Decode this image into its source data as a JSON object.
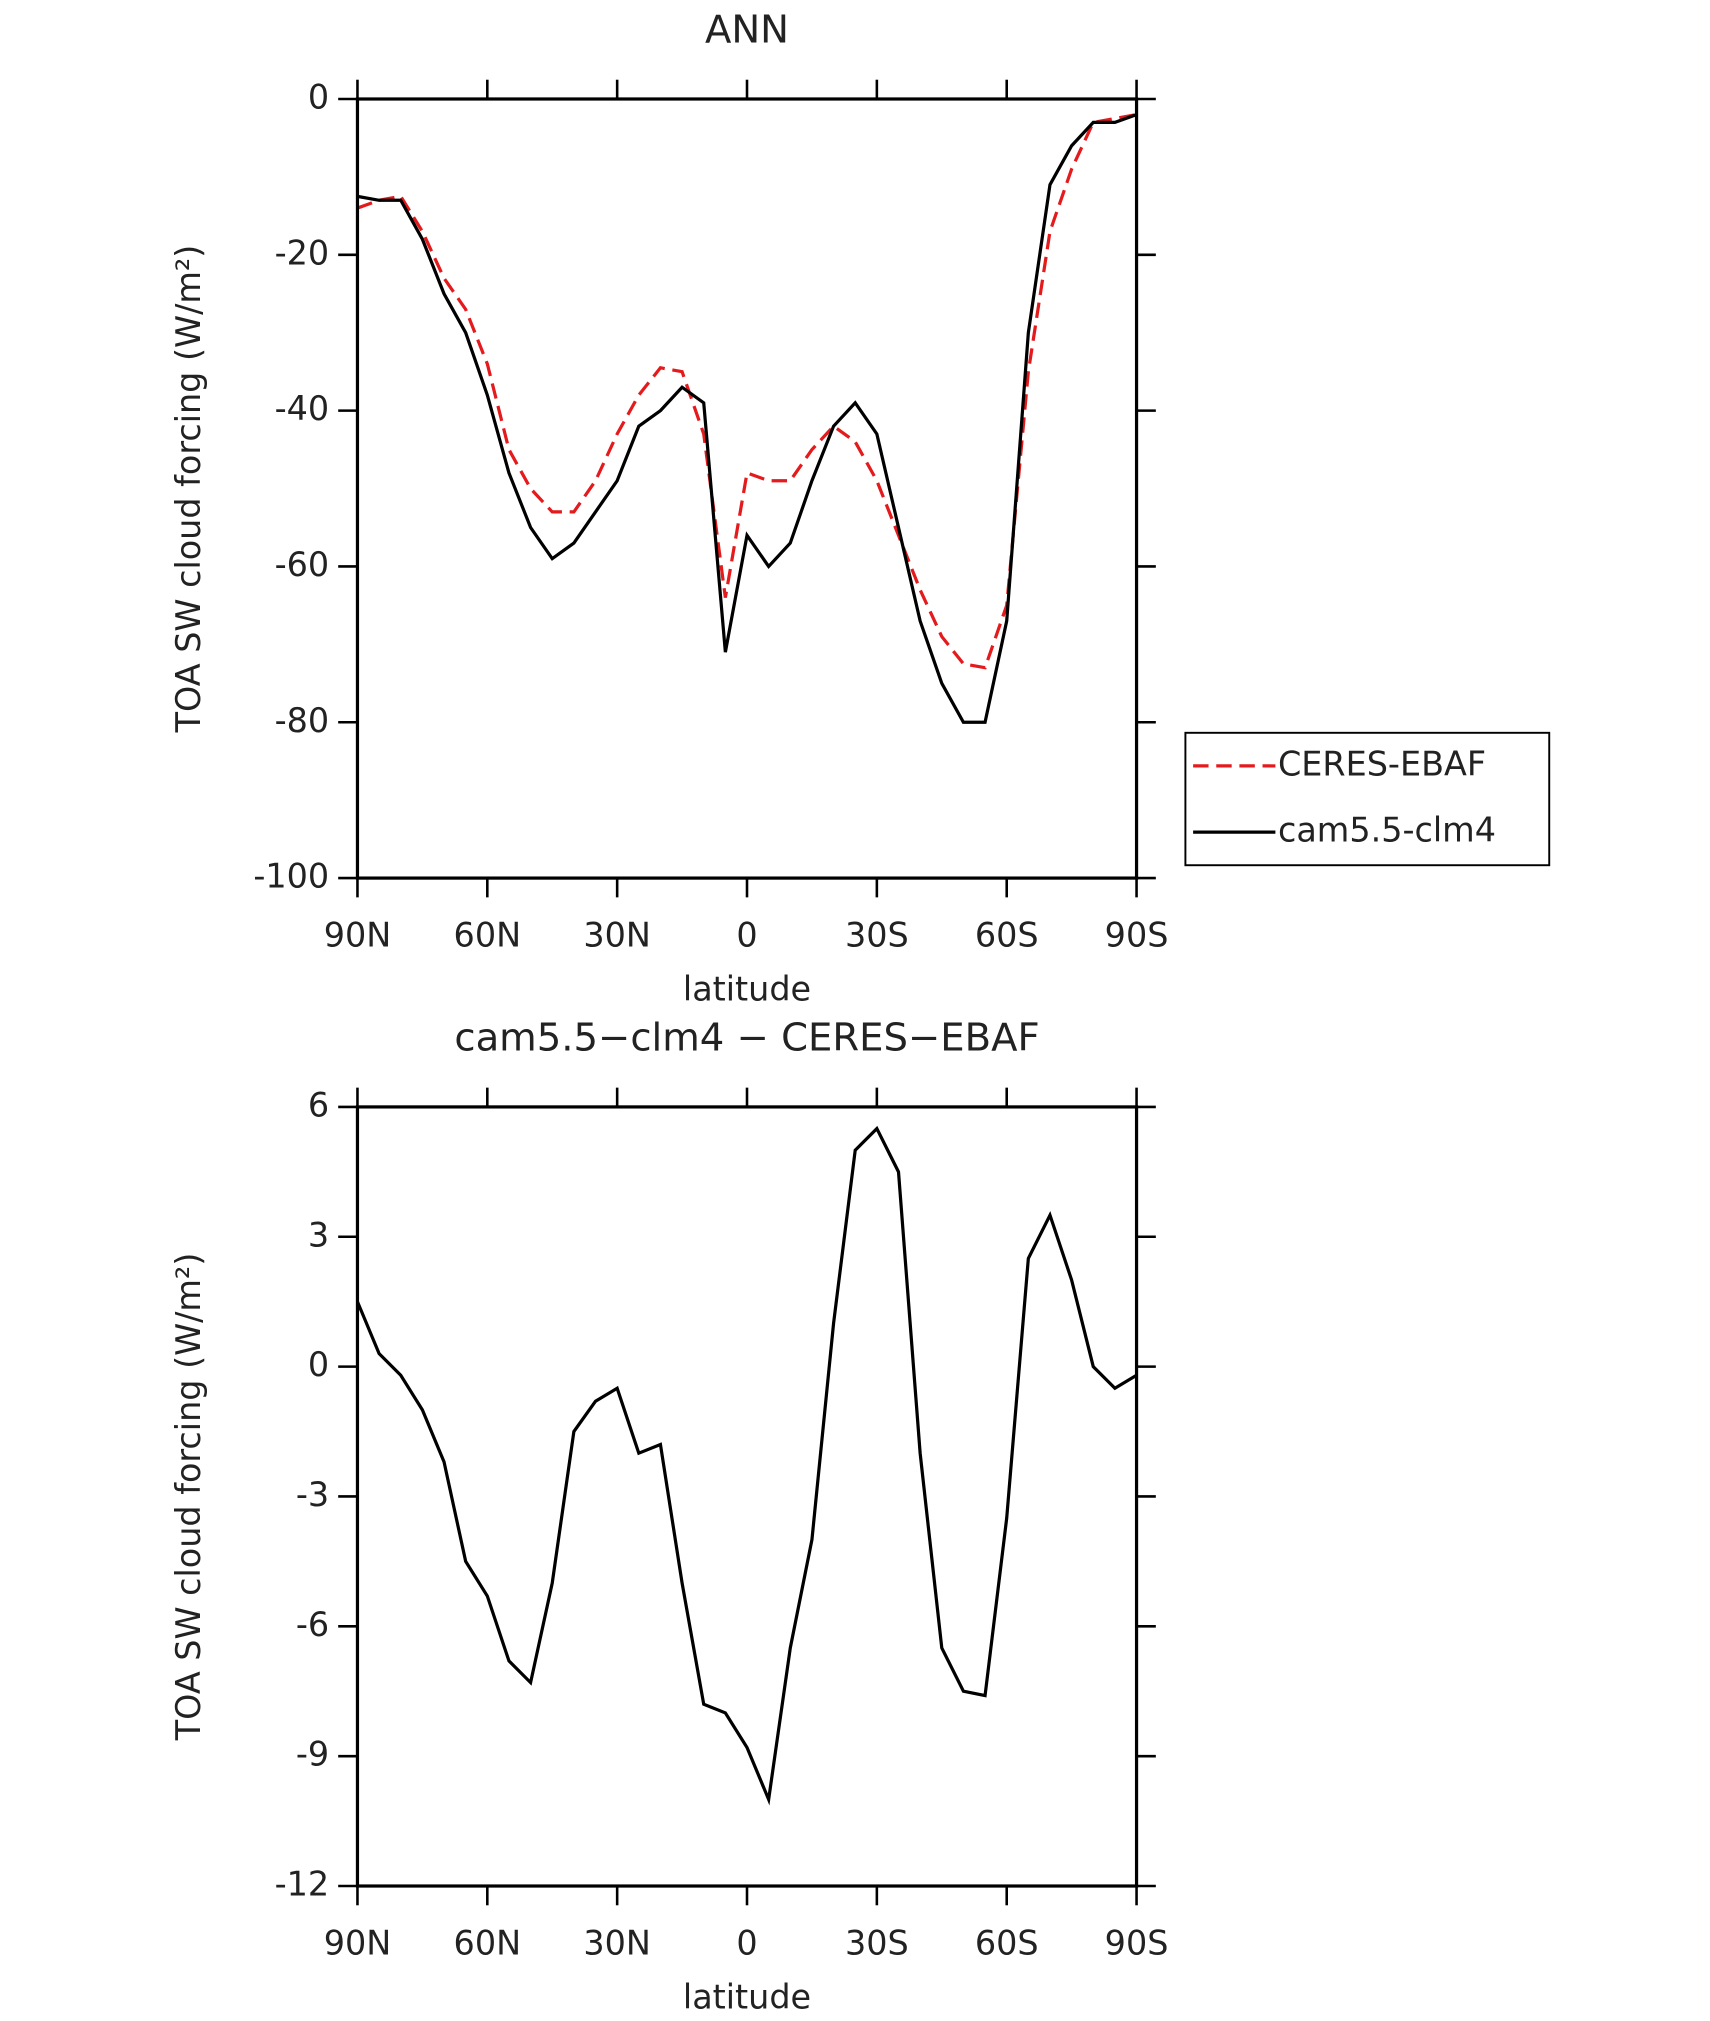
{
  "chart_data": [
    {
      "type": "line",
      "title": "ANN",
      "xlabel": "latitude",
      "ylabel": "TOA SW cloud forcing (W/m²)",
      "x": [
        90,
        85,
        80,
        75,
        70,
        65,
        60,
        55,
        50,
        45,
        40,
        35,
        30,
        25,
        20,
        15,
        10,
        5,
        0,
        -5,
        -10,
        -15,
        -20,
        -25,
        -30,
        -35,
        -40,
        -45,
        -50,
        -55,
        -60,
        -65,
        -70,
        -75,
        -80,
        -85,
        -90
      ],
      "xlim": [
        90,
        -90
      ],
      "xticks": [
        {
          "value": 90,
          "label": "90N"
        },
        {
          "value": 60,
          "label": "60N"
        },
        {
          "value": 30,
          "label": "30N"
        },
        0,
        {
          "value": -30,
          "label": "30S"
        },
        {
          "value": -60,
          "label": "60S"
        },
        {
          "value": -90,
          "label": "90S"
        }
      ],
      "ylim": [
        -100,
        0
      ],
      "yticks": [
        0,
        -20,
        -40,
        -60,
        -80,
        -100
      ],
      "legend": "right",
      "series": [
        {
          "name": "CERES-EBAF",
          "color": "#e41a1c",
          "dash": true,
          "values": [
            -14,
            -13,
            -12.5,
            -17,
            -23,
            -27,
            -34,
            -45,
            -50,
            -53,
            -53,
            -49,
            -43,
            -38,
            -34.5,
            -35,
            -43,
            -64,
            -48,
            -49,
            -49,
            -45,
            -42,
            -44,
            -49,
            -56,
            -63,
            -69,
            -72.5,
            -73,
            -65,
            -35,
            -17,
            -9,
            -3,
            -2.5,
            -2
          ]
        },
        {
          "name": "cam5.5-clm4",
          "color": "#000000",
          "dash": false,
          "values": [
            -12.5,
            -13,
            -13,
            -18,
            -25,
            -30,
            -38,
            -48,
            -55,
            -59,
            -57,
            -53,
            -49,
            -42,
            -40,
            -37,
            -39,
            -71,
            -56,
            -60,
            -57,
            -49,
            -42,
            -39,
            -43,
            -55,
            -67,
            -75,
            -80,
            -80,
            -67,
            -30,
            -11,
            -6,
            -3,
            -3,
            -2
          ]
        }
      ]
    },
    {
      "type": "line",
      "title": "cam5.5−clm4 − CERES−EBAF",
      "xlabel": "latitude",
      "ylabel": "TOA SW cloud forcing (W/m²)",
      "x": [
        90,
        85,
        80,
        75,
        70,
        65,
        60,
        55,
        50,
        45,
        40,
        35,
        30,
        25,
        20,
        15,
        10,
        5,
        0,
        -5,
        -10,
        -15,
        -20,
        -25,
        -30,
        -35,
        -40,
        -45,
        -50,
        -55,
        -60,
        -65,
        -70,
        -75,
        -80,
        -85,
        -90
      ],
      "xlim": [
        90,
        -90
      ],
      "xticks": [
        {
          "value": 90,
          "label": "90N"
        },
        {
          "value": 60,
          "label": "60N"
        },
        {
          "value": 30,
          "label": "30N"
        },
        0,
        {
          "value": -30,
          "label": "30S"
        },
        {
          "value": -60,
          "label": "60S"
        },
        {
          "value": -90,
          "label": "90S"
        }
      ],
      "ylim": [
        -12,
        6
      ],
      "yticks": [
        6,
        3,
        0,
        -3,
        -6,
        -9,
        -12
      ],
      "series": [
        {
          "color": "#000000",
          "dash": false,
          "values": [
            1.5,
            0.3,
            -0.2,
            -1,
            -2.2,
            -4.5,
            -5.3,
            -6.8,
            -7.3,
            -5,
            -1.5,
            -0.8,
            -0.5,
            -2,
            -1.8,
            -5,
            -7.8,
            -8,
            -8.8,
            -10,
            -6.5,
            -4,
            1,
            5,
            5.5,
            4.5,
            -2,
            -6.5,
            -7.5,
            -7.6,
            -3.5,
            2.5,
            3.5,
            2,
            0,
            -0.5,
            -0.2
          ]
        }
      ]
    }
  ]
}
